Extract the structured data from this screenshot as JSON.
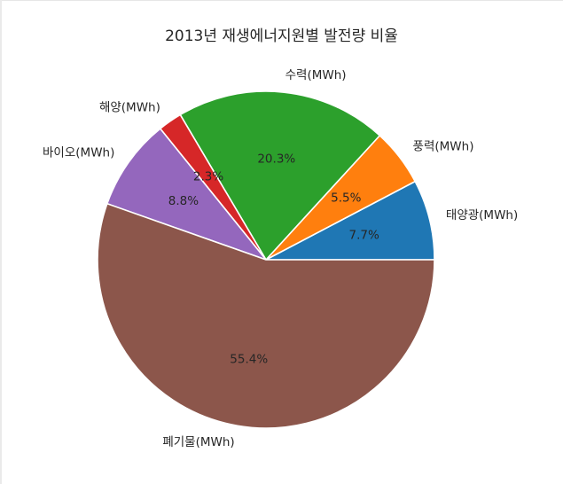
{
  "chart_data": {
    "type": "pie",
    "title": "2013년 재생에너지원별 발전량 비율",
    "categories": [
      "태양광(MWh)",
      "풍력(MWh)",
      "수력(MWh)",
      "해양(MWh)",
      "바이오(MWh)",
      "폐기물(MWh)"
    ],
    "values": [
      7.7,
      5.5,
      20.3,
      2.3,
      8.8,
      55.4
    ],
    "percent_labels": [
      "7.7%",
      "5.5%",
      "20.3%",
      "2.3%",
      "8.8%",
      "55.4%"
    ],
    "colors": [
      "#1f77b4",
      "#ff7f0e",
      "#2ca02c",
      "#d62728",
      "#9467bd",
      "#8c564b"
    ],
    "start_angle_deg": 0,
    "direction": "counterclockwise",
    "legend": "none"
  }
}
